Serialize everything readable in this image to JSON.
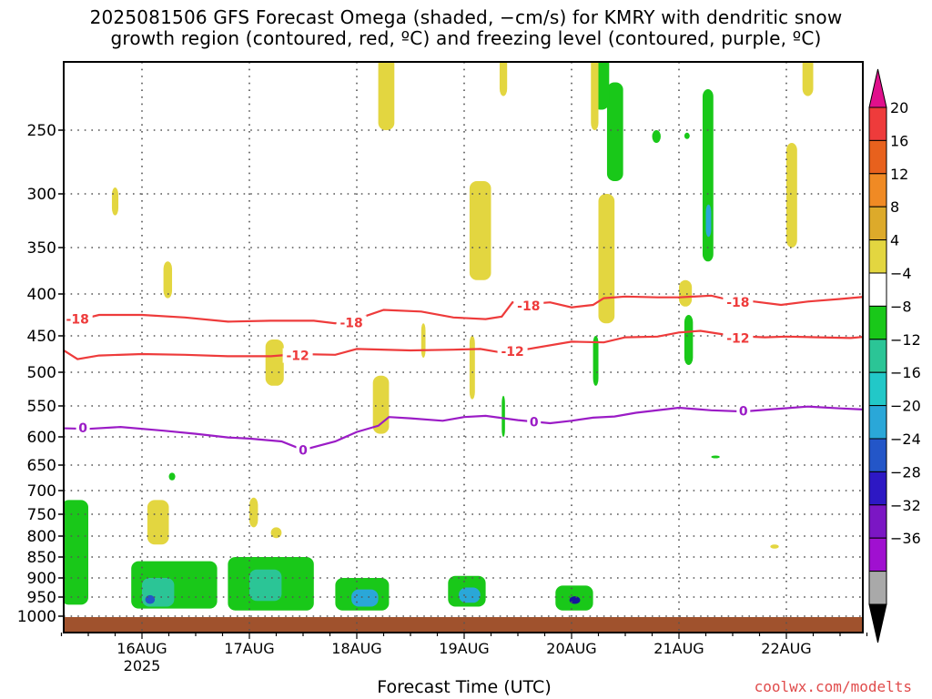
{
  "title_line1": "2025081506 GFS Forecast Omega (shaded, −cm/s) for KMRY with dendritic snow",
  "title_line2": "growth region (contoured, red, ºC) and freezing level (contoured, purple, ºC)",
  "credit": "coolwx.com/modelts",
  "colors": {
    "yellow": "#e3d640",
    "green": "#19c819",
    "teal": "#2bc596",
    "cyan": "#2aa7d8",
    "blue": "#2356c8",
    "navy": "#16169c",
    "dgt_line": "#ee3b3b",
    "freezing_line": "#9b1cc6",
    "ground": "#a0522d"
  },
  "chart_data": {
    "type": "heatmap",
    "xlabel": "Forecast Time (UTC)",
    "x_ticks": [
      "16AUG",
      "17AUG",
      "18AUG",
      "19AUG",
      "20AUG",
      "21AUG",
      "22AUG"
    ],
    "x_subtick": "2025",
    "ylabel": "",
    "y_ticks": [
      250,
      300,
      350,
      400,
      450,
      500,
      550,
      600,
      650,
      700,
      750,
      800,
      850,
      900,
      950,
      1000
    ],
    "y_axis": "pressure (hPa), inverted",
    "x_range": [
      "2025-08-15T06",
      "2025-08-22T18"
    ],
    "y_range": [
      200,
      1010
    ],
    "grid": true,
    "colorbar": {
      "labels": [
        "20",
        "16",
        "12",
        "8",
        "4",
        "−4",
        "−8",
        "−12",
        "−16",
        "−20",
        "−24",
        "−28",
        "−32",
        "−36"
      ],
      "colors": [
        "#ee3b3b",
        "#e8611d",
        "#f08a24",
        "#ddaa2a",
        "#e3d640",
        "#ffffff",
        "#19c819",
        "#2bc596",
        "#22c8c8",
        "#2aa7d8",
        "#2356c8",
        "#2d18c4",
        "#7b16c4",
        "#a010d0",
        "#a9a9a9"
      ],
      "top_arrow": "#e0108c",
      "bottom_arrow": "#000000"
    },
    "series": [
      {
        "name": "-18",
        "color": "red",
        "points": [
          [
            15.25,
            428
          ],
          [
            15.35,
            433
          ],
          [
            15.6,
            425
          ],
          [
            16.0,
            425
          ],
          [
            16.4,
            428
          ],
          [
            16.8,
            433
          ],
          [
            17.2,
            432
          ],
          [
            17.6,
            432
          ],
          [
            17.8,
            435
          ],
          [
            18.0,
            430
          ],
          [
            18.25,
            419
          ],
          [
            18.6,
            421
          ],
          [
            18.9,
            428
          ],
          [
            19.2,
            430
          ],
          [
            19.35,
            427
          ],
          [
            19.45,
            410
          ],
          [
            19.6,
            412
          ],
          [
            19.8,
            410
          ],
          [
            20.0,
            416
          ],
          [
            20.2,
            413
          ],
          [
            20.3,
            405
          ],
          [
            20.5,
            403
          ],
          [
            20.8,
            404
          ],
          [
            21.0,
            404
          ],
          [
            21.3,
            402
          ],
          [
            21.5,
            408
          ],
          [
            21.7,
            409
          ],
          [
            21.95,
            413
          ],
          [
            22.2,
            409
          ],
          [
            22.5,
            406
          ],
          [
            22.75,
            403
          ]
        ],
        "labels": [
          [
            15.4,
            430,
            "-18"
          ],
          [
            17.95,
            434,
            "-18"
          ],
          [
            19.6,
            414,
            "-18"
          ],
          [
            21.55,
            410,
            "-18"
          ]
        ]
      },
      {
        "name": "-12",
        "color": "red",
        "points": [
          [
            15.25,
            468
          ],
          [
            15.4,
            482
          ],
          [
            15.6,
            477
          ],
          [
            16.0,
            475
          ],
          [
            16.4,
            476
          ],
          [
            16.8,
            478
          ],
          [
            17.2,
            478
          ],
          [
            17.45,
            475
          ],
          [
            17.8,
            476
          ],
          [
            18.0,
            468
          ],
          [
            18.5,
            470
          ],
          [
            18.9,
            469
          ],
          [
            19.15,
            468
          ],
          [
            19.35,
            473
          ],
          [
            19.6,
            468
          ],
          [
            20.0,
            458
          ],
          [
            20.3,
            459
          ],
          [
            20.5,
            452
          ],
          [
            20.8,
            451
          ],
          [
            21.0,
            446
          ],
          [
            21.2,
            444
          ],
          [
            21.5,
            450
          ],
          [
            21.8,
            452
          ],
          [
            22.0,
            451
          ],
          [
            22.3,
            452
          ],
          [
            22.6,
            453
          ],
          [
            22.75,
            451
          ]
        ],
        "labels": [
          [
            17.45,
            477,
            "-12"
          ],
          [
            19.45,
            471,
            "-12"
          ],
          [
            21.55,
            453,
            "-12"
          ]
        ]
      },
      {
        "name": "0",
        "color": "purple",
        "points": [
          [
            15.25,
            586
          ],
          [
            15.5,
            587
          ],
          [
            15.8,
            584
          ],
          [
            16.2,
            590
          ],
          [
            16.5,
            595
          ],
          [
            16.8,
            601
          ],
          [
            17.0,
            603
          ],
          [
            17.3,
            608
          ],
          [
            17.5,
            623
          ],
          [
            17.8,
            608
          ],
          [
            18.0,
            592
          ],
          [
            18.2,
            582
          ],
          [
            18.3,
            568
          ],
          [
            18.5,
            570
          ],
          [
            18.8,
            574
          ],
          [
            19.0,
            568
          ],
          [
            19.2,
            566
          ],
          [
            19.5,
            573
          ],
          [
            19.8,
            578
          ],
          [
            20.0,
            574
          ],
          [
            20.2,
            569
          ],
          [
            20.4,
            567
          ],
          [
            20.6,
            561
          ],
          [
            21.0,
            553
          ],
          [
            21.3,
            557
          ],
          [
            21.6,
            559
          ],
          [
            21.9,
            555
          ],
          [
            22.2,
            551
          ],
          [
            22.5,
            554
          ],
          [
            22.75,
            556
          ]
        ],
        "labels": [
          [
            15.45,
            585,
            "0"
          ],
          [
            17.5,
            623,
            "0"
          ],
          [
            19.65,
            576,
            "0"
          ],
          [
            21.6,
            558,
            "0"
          ]
        ]
      }
    ],
    "shaded_regions": [
      {
        "color": "green",
        "x": [
          15.25,
          15.5
        ],
        "p": [
          720,
          970
        ]
      },
      {
        "color": "green",
        "x": [
          15.9,
          16.7
        ],
        "p": [
          860,
          980
        ]
      },
      {
        "color": "teal",
        "x": [
          16.0,
          16.3
        ],
        "p": [
          900,
          975
        ]
      },
      {
        "color": "blue",
        "x": [
          16.03,
          16.12
        ],
        "p": [
          945,
          968
        ]
      },
      {
        "color": "green",
        "x": [
          16.8,
          17.6
        ],
        "p": [
          850,
          985
        ]
      },
      {
        "color": "teal",
        "x": [
          17.0,
          17.3
        ],
        "p": [
          880,
          960
        ]
      },
      {
        "color": "green",
        "x": [
          17.8,
          18.3
        ],
        "p": [
          900,
          985
        ]
      },
      {
        "color": "cyan",
        "x": [
          17.95,
          18.2
        ],
        "p": [
          930,
          975
        ]
      },
      {
        "color": "green",
        "x": [
          18.85,
          19.2
        ],
        "p": [
          895,
          975
        ]
      },
      {
        "color": "cyan",
        "x": [
          18.95,
          19.15
        ],
        "p": [
          925,
          965
        ]
      },
      {
        "color": "green",
        "x": [
          19.85,
          20.2
        ],
        "p": [
          920,
          985
        ]
      },
      {
        "color": "navy",
        "x": [
          19.98,
          20.08
        ],
        "p": [
          948,
          968
        ]
      },
      {
        "color": "green",
        "x": [
          20.33,
          20.48
        ],
        "p": [
          215,
          290
        ]
      },
      {
        "color": "green",
        "x": [
          20.2,
          20.35
        ],
        "p": [
          195,
          235
        ]
      },
      {
        "color": "green",
        "x": [
          21.22,
          21.32
        ],
        "p": [
          220,
          365
        ]
      },
      {
        "color": "cyan",
        "x": [
          21.25,
          21.3
        ],
        "p": [
          310,
          340
        ]
      },
      {
        "color": "green",
        "x": [
          20.75,
          20.83
        ],
        "p": [
          250,
          260
        ]
      },
      {
        "color": "green",
        "x": [
          21.05,
          21.1
        ],
        "p": [
          252,
          257
        ]
      },
      {
        "color": "green",
        "x": [
          21.05,
          21.13
        ],
        "p": [
          425,
          490
        ]
      },
      {
        "color": "green",
        "x": [
          19.35,
          19.38
        ],
        "p": [
          535,
          600
        ]
      },
      {
        "color": "green",
        "x": [
          20.2,
          20.25
        ],
        "p": [
          450,
          520
        ]
      },
      {
        "color": "green",
        "x": [
          16.25,
          16.31
        ],
        "p": [
          665,
          680
        ]
      },
      {
        "color": "green",
        "x": [
          21.3,
          21.38
        ],
        "p": [
          633,
          638
        ]
      },
      {
        "color": "yellow",
        "x": [
          18.2,
          18.35
        ],
        "p": [
          195,
          250
        ]
      },
      {
        "color": "yellow",
        "x": [
          19.05,
          19.25
        ],
        "p": [
          290,
          385
        ]
      },
      {
        "color": "yellow",
        "x": [
          18.15,
          18.3
        ],
        "p": [
          505,
          595
        ]
      },
      {
        "color": "yellow",
        "x": [
          20.25,
          20.4
        ],
        "p": [
          300,
          435
        ]
      },
      {
        "color": "yellow",
        "x": [
          20.18,
          20.25
        ],
        "p": [
          195,
          250
        ]
      },
      {
        "color": "yellow",
        "x": [
          16.05,
          16.25
        ],
        "p": [
          720,
          820
        ]
      },
      {
        "color": "yellow",
        "x": [
          17.0,
          17.08
        ],
        "p": [
          715,
          780
        ]
      },
      {
        "color": "yellow",
        "x": [
          17.15,
          17.32
        ],
        "p": [
          455,
          520
        ]
      },
      {
        "color": "yellow",
        "x": [
          22.0,
          22.1
        ],
        "p": [
          260,
          350
        ]
      },
      {
        "color": "yellow",
        "x": [
          22.15,
          22.25
        ],
        "p": [
          195,
          225
        ]
      },
      {
        "color": "yellow",
        "x": [
          21.0,
          21.12
        ],
        "p": [
          385,
          415
        ]
      },
      {
        "color": "yellow",
        "x": [
          16.2,
          16.28
        ],
        "p": [
          365,
          405
        ]
      },
      {
        "color": "yellow",
        "x": [
          19.33,
          19.4
        ],
        "p": [
          195,
          225
        ]
      },
      {
        "color": "yellow",
        "x": [
          19.05,
          19.1
        ],
        "p": [
          450,
          540
        ]
      },
      {
        "color": "yellow",
        "x": [
          18.6,
          18.64
        ],
        "p": [
          435,
          480
        ]
      },
      {
        "color": "yellow",
        "x": [
          21.85,
          21.93
        ],
        "p": [
          820,
          830
        ]
      },
      {
        "color": "yellow",
        "x": [
          17.2,
          17.3
        ],
        "p": [
          780,
          805
        ]
      },
      {
        "color": "yellow",
        "x": [
          15.72,
          15.78
        ],
        "p": [
          295,
          320
        ]
      }
    ]
  }
}
